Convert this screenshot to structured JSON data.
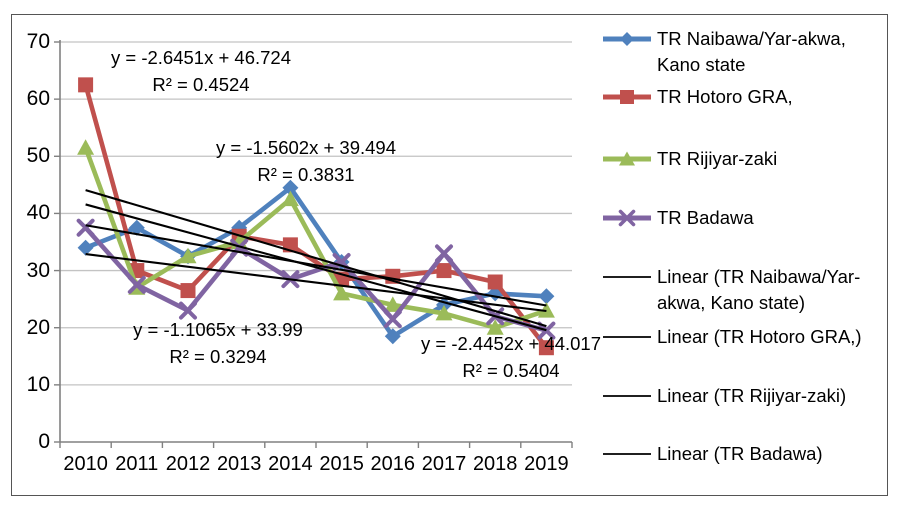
{
  "chart_data": {
    "type": "line",
    "x_categories": [
      "2010",
      "2011",
      "2012",
      "2013",
      "2014",
      "2015",
      "2016",
      "2017",
      "2018",
      "2019"
    ],
    "y_axis": {
      "min": 0,
      "max": 70,
      "tick_step": 10,
      "tick_labels": [
        "0",
        "10",
        "20",
        "30",
        "40",
        "50",
        "60",
        "70"
      ]
    },
    "grid": true,
    "legend_position": "right",
    "series": [
      {
        "name": "TR Naibawa/Yar-akwa, Kano state",
        "color": "#4F81BD",
        "marker": "diamond",
        "values": [
          34,
          37.5,
          32.5,
          37.5,
          44.5,
          31.5,
          18.5,
          24,
          26,
          25.5
        ]
      },
      {
        "name": "TR Hotoro GRA,",
        "color": "#C0504D",
        "marker": "square",
        "values": [
          62.5,
          30,
          26.5,
          36,
          34.5,
          28.5,
          29,
          30,
          28,
          16.5
        ]
      },
      {
        "name": "TR Rijiyar-zaki",
        "color": "#9BBB59",
        "marker": "triangle",
        "values": [
          51.5,
          27,
          32.5,
          35,
          42.5,
          26,
          24,
          22.5,
          20,
          23
        ]
      },
      {
        "name": "TR Badawa",
        "color": "#8064A2",
        "marker": "x",
        "values": [
          37.5,
          27.5,
          23,
          34,
          28.5,
          31.5,
          21.5,
          33,
          22,
          19.5
        ]
      }
    ],
    "trendlines": [
      {
        "series": "TR Hotoro GRA,",
        "slope": -2.6451,
        "intercept": 46.724,
        "equation": "y = -2.6451x + 46.724",
        "r_squared": "R² = 0.4524",
        "color": "#000000"
      },
      {
        "series": "TR Naibawa/Yar-akwa, Kano state",
        "slope": -1.5602,
        "intercept": 39.494,
        "equation": "y = -1.5602x + 39.494",
        "r_squared": "R² = 0.3831",
        "color": "#000000"
      },
      {
        "series": "TR Badawa",
        "slope": -1.1065,
        "intercept": 33.99,
        "equation": "y = -1.1065x + 33.99",
        "r_squared": "R² = 0.3294",
        "color": "#000000"
      },
      {
        "series": "TR Rijiyar-zaki",
        "slope": -2.4452,
        "intercept": 44.017,
        "equation": "y = -2.4452x + 44.017",
        "r_squared": "R² = 0.5404",
        "color": "#000000"
      }
    ],
    "axis_color": "#808080",
    "gridline_color": "#C3C3C3"
  },
  "legend": {
    "items": [
      {
        "label": "TR Naibawa/Yar-akwa, Kano state",
        "marker": "diamond",
        "color": "#4F81BD"
      },
      {
        "label": "TR Hotoro GRA,",
        "marker": "square",
        "color": "#C0504D"
      },
      {
        "label": "TR Rijiyar-zaki",
        "marker": "triangle",
        "color": "#9BBB59"
      },
      {
        "label": "TR Badawa",
        "marker": "x",
        "color": "#8064A2"
      },
      {
        "label": "Linear (TR Naibawa/Yar-akwa, Kano state)",
        "marker": "line",
        "color": "#000000"
      },
      {
        "label": "Linear (TR Hotoro GRA,)",
        "marker": "line",
        "color": "#000000"
      },
      {
        "label": "Linear (TR Rijiyar-zaki)",
        "marker": "line",
        "color": "#000000"
      },
      {
        "label": "Linear (TR Badawa)",
        "marker": "line",
        "color": "#000000"
      }
    ]
  }
}
